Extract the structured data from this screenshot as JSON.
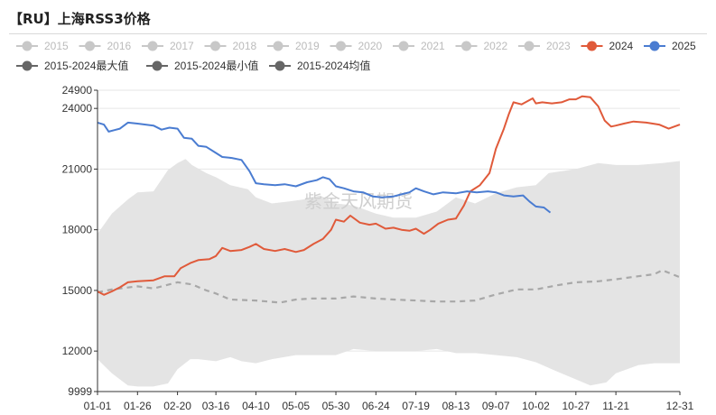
{
  "title": "【RU】上海RSS3价格",
  "watermark": "紫金天风期货",
  "colors": {
    "s2024": "#e05a3a",
    "s2025": "#4a7cd1",
    "band": "#e4e4e4",
    "avg": "#a8a8a8",
    "inactive": "#c8c8c8",
    "stat": "#666666"
  },
  "chart_data": {
    "type": "line",
    "xlabel": "",
    "ylabel": "",
    "x_ticks": [
      "01-01",
      "01-26",
      "02-20",
      "03-16",
      "04-10",
      "05-05",
      "05-30",
      "06-24",
      "07-19",
      "08-13",
      "09-07",
      "10-02",
      "10-27",
      "11-21",
      "12-31"
    ],
    "y_ticks": [
      9999,
      12000,
      15000,
      18000,
      21000,
      24000,
      24900
    ],
    "ylim": [
      9999,
      24900
    ],
    "grid": "horizontal",
    "legend_position": "top",
    "legend": {
      "row1": [
        {
          "name": "2015",
          "active": false
        },
        {
          "name": "2016",
          "active": false
        },
        {
          "name": "2017",
          "active": false
        },
        {
          "name": "2018",
          "active": false
        },
        {
          "name": "2019",
          "active": false
        },
        {
          "name": "2020",
          "active": false
        },
        {
          "name": "2021",
          "active": false
        },
        {
          "name": "2022",
          "active": false
        },
        {
          "name": "2023",
          "active": false
        },
        {
          "name": "2024",
          "active": true,
          "color": "#e05a3a"
        },
        {
          "name": "2025",
          "active": true,
          "color": "#4a7cd1"
        }
      ],
      "row2": [
        {
          "name": "2015-2024最大值",
          "active": true,
          "color": "#666666"
        },
        {
          "name": "2015-2024最小值",
          "active": true,
          "color": "#666666"
        },
        {
          "name": "2015-2024均值",
          "active": true,
          "color": "#666666"
        }
      ]
    },
    "series": [
      {
        "name": "2024",
        "points": [
          [
            "01-01",
            14950
          ],
          [
            "01-05",
            14780
          ],
          [
            "01-10",
            14950
          ],
          [
            "01-15",
            15150
          ],
          [
            "01-20",
            15400
          ],
          [
            "01-26",
            15450
          ],
          [
            "02-05",
            15500
          ],
          [
            "02-12",
            15700
          ],
          [
            "02-18",
            15700
          ],
          [
            "02-22",
            16100
          ],
          [
            "02-28",
            16350
          ],
          [
            "03-05",
            16500
          ],
          [
            "03-12",
            16550
          ],
          [
            "03-16",
            16700
          ],
          [
            "03-20",
            17100
          ],
          [
            "03-25",
            16950
          ],
          [
            "04-01",
            17000
          ],
          [
            "04-06",
            17150
          ],
          [
            "04-10",
            17300
          ],
          [
            "04-15",
            17050
          ],
          [
            "04-22",
            16950
          ],
          [
            "04-28",
            17050
          ],
          [
            "05-05",
            16900
          ],
          [
            "05-10",
            17000
          ],
          [
            "05-16",
            17300
          ],
          [
            "05-22",
            17550
          ],
          [
            "05-27",
            18000
          ],
          [
            "05-30",
            18500
          ],
          [
            "06-04",
            18400
          ],
          [
            "06-08",
            18700
          ],
          [
            "06-14",
            18350
          ],
          [
            "06-20",
            18250
          ],
          [
            "06-24",
            18300
          ],
          [
            "06-30",
            18050
          ],
          [
            "07-05",
            18100
          ],
          [
            "07-10",
            18000
          ],
          [
            "07-15",
            17950
          ],
          [
            "07-19",
            18050
          ],
          [
            "07-24",
            17800
          ],
          [
            "07-28",
            18000
          ],
          [
            "08-02",
            18300
          ],
          [
            "08-08",
            18500
          ],
          [
            "08-13",
            18550
          ],
          [
            "08-18",
            19200
          ],
          [
            "08-22",
            19900
          ],
          [
            "08-28",
            20200
          ],
          [
            "09-03",
            20800
          ],
          [
            "09-07",
            22000
          ],
          [
            "09-12",
            23000
          ],
          [
            "09-15",
            23700
          ],
          [
            "09-18",
            24300
          ],
          [
            "09-23",
            24200
          ],
          [
            "09-30",
            24500
          ],
          [
            "10-02",
            24250
          ],
          [
            "10-06",
            24300
          ],
          [
            "10-12",
            24250
          ],
          [
            "10-18",
            24300
          ],
          [
            "10-23",
            24450
          ],
          [
            "10-27",
            24450
          ],
          [
            "10-31",
            24600
          ],
          [
            "11-05",
            24550
          ],
          [
            "11-10",
            24100
          ],
          [
            "11-14",
            23400
          ],
          [
            "11-18",
            23100
          ],
          [
            "11-21",
            23150
          ],
          [
            "11-26",
            23250
          ],
          [
            "12-02",
            23350
          ],
          [
            "12-10",
            23300
          ],
          [
            "12-18",
            23200
          ],
          [
            "12-24",
            23000
          ],
          [
            "12-31",
            23200
          ]
        ]
      },
      {
        "name": "2025",
        "points": [
          [
            "01-01",
            23300
          ],
          [
            "01-05",
            23200
          ],
          [
            "01-08",
            22850
          ],
          [
            "01-15",
            23000
          ],
          [
            "01-20",
            23300
          ],
          [
            "01-26",
            23250
          ],
          [
            "02-05",
            23150
          ],
          [
            "02-10",
            22950
          ],
          [
            "02-15",
            23050
          ],
          [
            "02-20",
            23000
          ],
          [
            "02-24",
            22550
          ],
          [
            "03-01",
            22500
          ],
          [
            "03-05",
            22150
          ],
          [
            "03-10",
            22100
          ],
          [
            "03-16",
            21800
          ],
          [
            "03-20",
            21600
          ],
          [
            "03-26",
            21550
          ],
          [
            "04-01",
            21450
          ],
          [
            "04-06",
            20900
          ],
          [
            "04-10",
            20300
          ],
          [
            "04-15",
            20250
          ],
          [
            "04-22",
            20200
          ],
          [
            "04-28",
            20250
          ],
          [
            "05-05",
            20150
          ],
          [
            "05-12",
            20350
          ],
          [
            "05-18",
            20450
          ],
          [
            "05-22",
            20600
          ],
          [
            "05-26",
            20500
          ],
          [
            "05-30",
            20150
          ],
          [
            "06-04",
            20050
          ],
          [
            "06-10",
            19900
          ],
          [
            "06-16",
            19850
          ],
          [
            "06-22",
            19650
          ],
          [
            "06-28",
            19600
          ],
          [
            "07-05",
            19650
          ],
          [
            "07-10",
            19750
          ],
          [
            "07-15",
            19850
          ],
          [
            "07-19",
            20050
          ],
          [
            "07-24",
            19900
          ],
          [
            "07-30",
            19750
          ],
          [
            "08-05",
            19850
          ],
          [
            "08-13",
            19800
          ],
          [
            "08-20",
            19900
          ],
          [
            "08-26",
            19850
          ],
          [
            "09-02",
            19900
          ],
          [
            "09-07",
            19850
          ],
          [
            "09-12",
            19700
          ],
          [
            "09-18",
            19650
          ],
          [
            "09-24",
            19700
          ],
          [
            "09-28",
            19400
          ],
          [
            "10-02",
            19150
          ],
          [
            "10-07",
            19100
          ],
          [
            "10-11",
            18850
          ]
        ]
      },
      {
        "name": "2015-2024均值",
        "points": [
          [
            "01-01",
            14900
          ],
          [
            "01-10",
            15050
          ],
          [
            "01-26",
            15200
          ],
          [
            "02-05",
            15100
          ],
          [
            "02-20",
            15400
          ],
          [
            "03-01",
            15300
          ],
          [
            "03-10",
            15000
          ],
          [
            "03-16",
            14850
          ],
          [
            "03-25",
            14550
          ],
          [
            "04-10",
            14500
          ],
          [
            "04-25",
            14400
          ],
          [
            "05-05",
            14550
          ],
          [
            "05-15",
            14600
          ],
          [
            "05-30",
            14600
          ],
          [
            "06-10",
            14700
          ],
          [
            "06-24",
            14600
          ],
          [
            "07-05",
            14550
          ],
          [
            "07-19",
            14500
          ],
          [
            "08-01",
            14450
          ],
          [
            "08-13",
            14450
          ],
          [
            "08-25",
            14500
          ],
          [
            "09-07",
            14800
          ],
          [
            "09-20",
            15050
          ],
          [
            "10-02",
            15050
          ],
          [
            "10-15",
            15250
          ],
          [
            "10-27",
            15400
          ],
          [
            "11-10",
            15450
          ],
          [
            "11-21",
            15550
          ],
          [
            "12-05",
            15700
          ],
          [
            "12-15",
            15800
          ],
          [
            "12-20",
            16000
          ],
          [
            "12-31",
            15650
          ]
        ]
      },
      {
        "name": "2015-2024最大值",
        "points": [
          [
            "01-01",
            17800
          ],
          [
            "01-10",
            18800
          ],
          [
            "01-20",
            19500
          ],
          [
            "01-26",
            19850
          ],
          [
            "02-05",
            19900
          ],
          [
            "02-14",
            20950
          ],
          [
            "02-20",
            21300
          ],
          [
            "02-25",
            21500
          ],
          [
            "03-01",
            21200
          ],
          [
            "03-10",
            20800
          ],
          [
            "03-16",
            20600
          ],
          [
            "03-25",
            20200
          ],
          [
            "04-05",
            20000
          ],
          [
            "04-10",
            19600
          ],
          [
            "04-20",
            19300
          ],
          [
            "05-01",
            19400
          ],
          [
            "05-10",
            19500
          ],
          [
            "05-20",
            19700
          ],
          [
            "05-30",
            19300
          ],
          [
            "06-10",
            19200
          ],
          [
            "06-24",
            18800
          ],
          [
            "07-05",
            18600
          ],
          [
            "07-19",
            18600
          ],
          [
            "08-01",
            18900
          ],
          [
            "08-13",
            19600
          ],
          [
            "08-25",
            19300
          ],
          [
            "09-07",
            19800
          ],
          [
            "09-20",
            20100
          ],
          [
            "10-02",
            20200
          ],
          [
            "10-10",
            20800
          ],
          [
            "10-27",
            21000
          ],
          [
            "11-10",
            21300
          ],
          [
            "11-21",
            21200
          ],
          [
            "12-05",
            21200
          ],
          [
            "12-20",
            21300
          ],
          [
            "12-31",
            21400
          ]
        ]
      },
      {
        "name": "2015-2024最小值",
        "points": [
          [
            "01-01",
            11600
          ],
          [
            "01-10",
            10900
          ],
          [
            "01-20",
            10300
          ],
          [
            "01-26",
            10250
          ],
          [
            "02-05",
            10250
          ],
          [
            "02-14",
            10400
          ],
          [
            "02-20",
            11100
          ],
          [
            "02-28",
            11600
          ],
          [
            "03-05",
            11600
          ],
          [
            "03-16",
            11500
          ],
          [
            "03-25",
            11700
          ],
          [
            "04-01",
            11500
          ],
          [
            "04-10",
            11400
          ],
          [
            "04-20",
            11600
          ],
          [
            "05-05",
            11800
          ],
          [
            "05-20",
            11800
          ],
          [
            "05-30",
            11800
          ],
          [
            "06-10",
            12100
          ],
          [
            "06-24",
            12000
          ],
          [
            "07-05",
            12000
          ],
          [
            "07-19",
            12000
          ],
          [
            "08-01",
            12100
          ],
          [
            "08-13",
            11900
          ],
          [
            "08-25",
            11900
          ],
          [
            "09-07",
            11800
          ],
          [
            "09-20",
            11700
          ],
          [
            "10-02",
            11450
          ],
          [
            "10-15",
            11000
          ],
          [
            "10-27",
            10600
          ],
          [
            "11-05",
            10300
          ],
          [
            "11-15",
            10450
          ],
          [
            "11-21",
            10900
          ],
          [
            "12-05",
            11300
          ],
          [
            "12-15",
            11400
          ],
          [
            "12-31",
            11400
          ]
        ]
      }
    ]
  }
}
